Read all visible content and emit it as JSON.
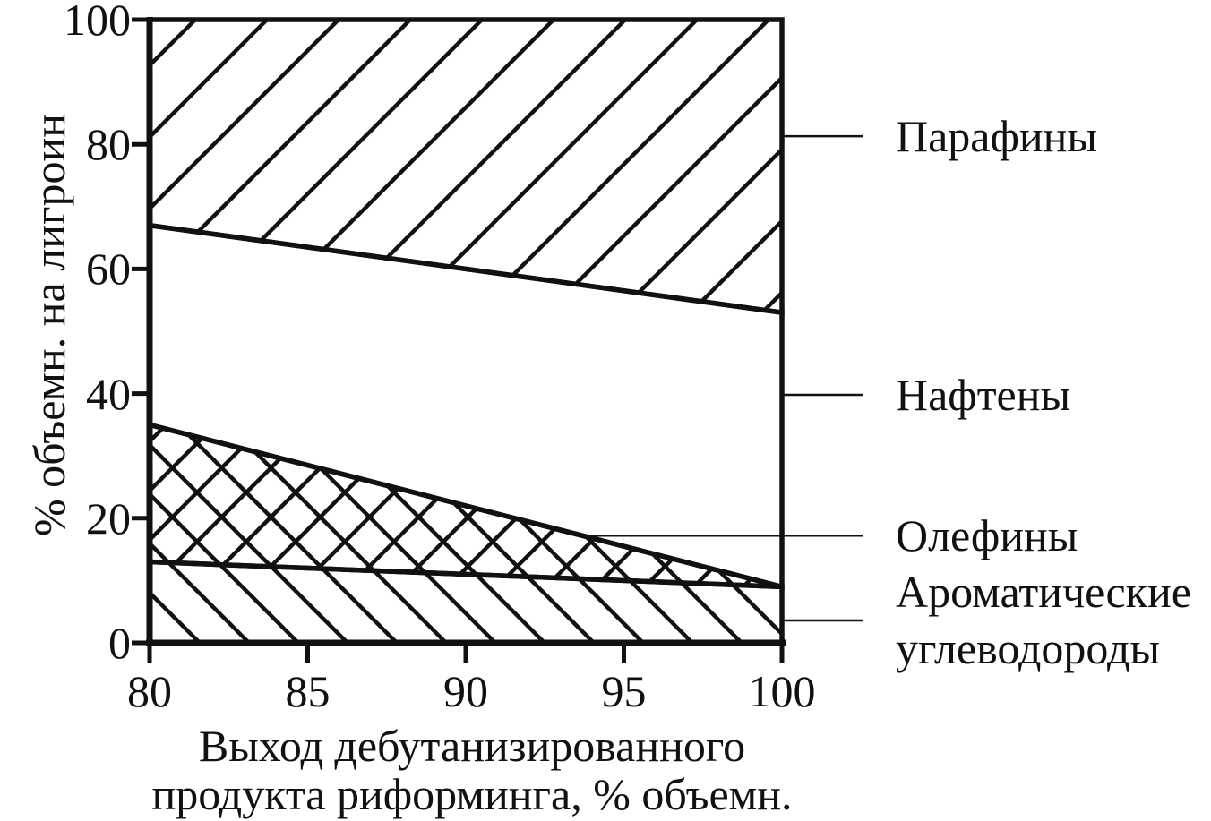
{
  "figure": {
    "background_color": "#ffffff",
    "ink_color": "#111111"
  },
  "chart_data": {
    "type": "area",
    "title": "",
    "ylabel": "% объемн. на лигроин",
    "xlabel_line1": "Выход дебутанизированного",
    "xlabel_line2": "продукта риформинга, % объемн.",
    "xlim": [
      80,
      100
    ],
    "ylim": [
      0,
      100
    ],
    "x_ticks": [
      80,
      85,
      90,
      95,
      100
    ],
    "y_ticks": [
      0,
      20,
      40,
      60,
      80,
      100
    ],
    "x_tick_labels": [
      "80",
      "85",
      "90",
      "95",
      "100"
    ],
    "y_tick_labels": [
      "0",
      "20",
      "40",
      "60",
      "80",
      "100"
    ],
    "grid": false,
    "legend_position": "right-leader-lines",
    "x": [
      80,
      100
    ],
    "regions": [
      {
        "key": "aromatics",
        "name": "Ароматические углеводороды",
        "label_lines": [
          "Ароматические",
          "углеводороды"
        ],
        "lower": [
          0,
          0
        ],
        "upper": [
          13,
          9
        ],
        "hatch": "backslash",
        "leader_y": 3.6,
        "leader_attach": "edge"
      },
      {
        "key": "olefins",
        "name": "Олефины",
        "label_lines": [
          "Олефины"
        ],
        "lower": [
          13,
          9
        ],
        "upper": [
          35,
          9
        ],
        "hatch": "cross",
        "leader_y": 17.2,
        "leader_attach": "boundary"
      },
      {
        "key": "naphthenes",
        "name": "Нафтены",
        "label_lines": [
          "Нафтены"
        ],
        "lower": [
          35,
          9
        ],
        "upper": [
          67,
          53
        ],
        "hatch": "none",
        "leader_y": 39.8,
        "leader_attach": "edge"
      },
      {
        "key": "paraffins",
        "name": "Парафины",
        "label_lines": [
          "Парафины"
        ],
        "lower": [
          67,
          53
        ],
        "upper": [
          100,
          100
        ],
        "hatch": "slash",
        "leader_y": 81.3,
        "leader_attach": "edge"
      }
    ]
  }
}
